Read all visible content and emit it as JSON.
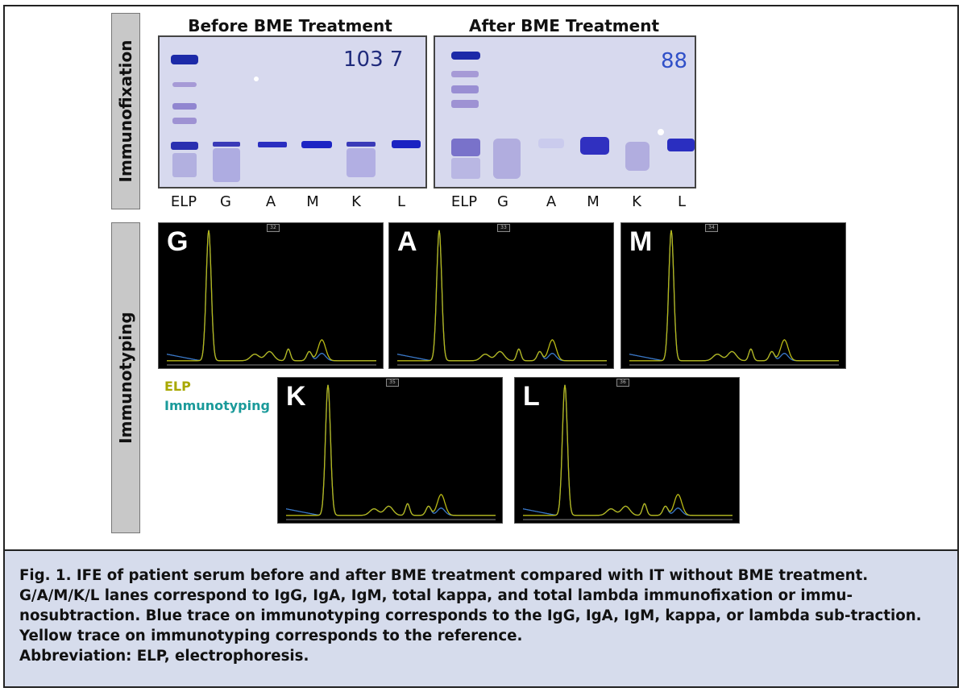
{
  "section_labels": {
    "top": "Immunofixation",
    "bottom": "Immunotyping"
  },
  "gels": [
    {
      "title": "Before BME Treatment",
      "handwriting": "103 7",
      "lanes": [
        "ELP",
        "G",
        "A",
        "M",
        "K",
        "L"
      ]
    },
    {
      "title": "After BME Treatment",
      "handwriting": "88",
      "lanes": [
        "ELP",
        "G",
        "A",
        "M",
        "K",
        "L"
      ]
    }
  ],
  "traces": [
    {
      "label": "G",
      "number": "32"
    },
    {
      "label": "A",
      "number": "33"
    },
    {
      "label": "M",
      "number": "34"
    },
    {
      "label": "K",
      "number": "35"
    },
    {
      "label": "L",
      "number": "36"
    }
  ],
  "legend": {
    "elp": "ELP",
    "elp_color": "#a8a800",
    "it": "Immunotyping",
    "it_color": "#1a9a9a"
  },
  "caption": {
    "fig_label": "Fig. 1.",
    "text": "IFE of patient serum before and after BME treatment compared with IT without BME treatment. G/A/M/K/L lanes correspond to IgG, IgA, IgM, total kappa, and total lambda immunofixation or immu-nosubtraction. Blue trace on immunotyping corresponds to the IgG, IgA, IgM, kappa, or lambda sub-traction. Yellow trace on immunotyping corresponds to the reference.",
    "abbrev": "Abbreviation: ELP, electrophoresis."
  }
}
